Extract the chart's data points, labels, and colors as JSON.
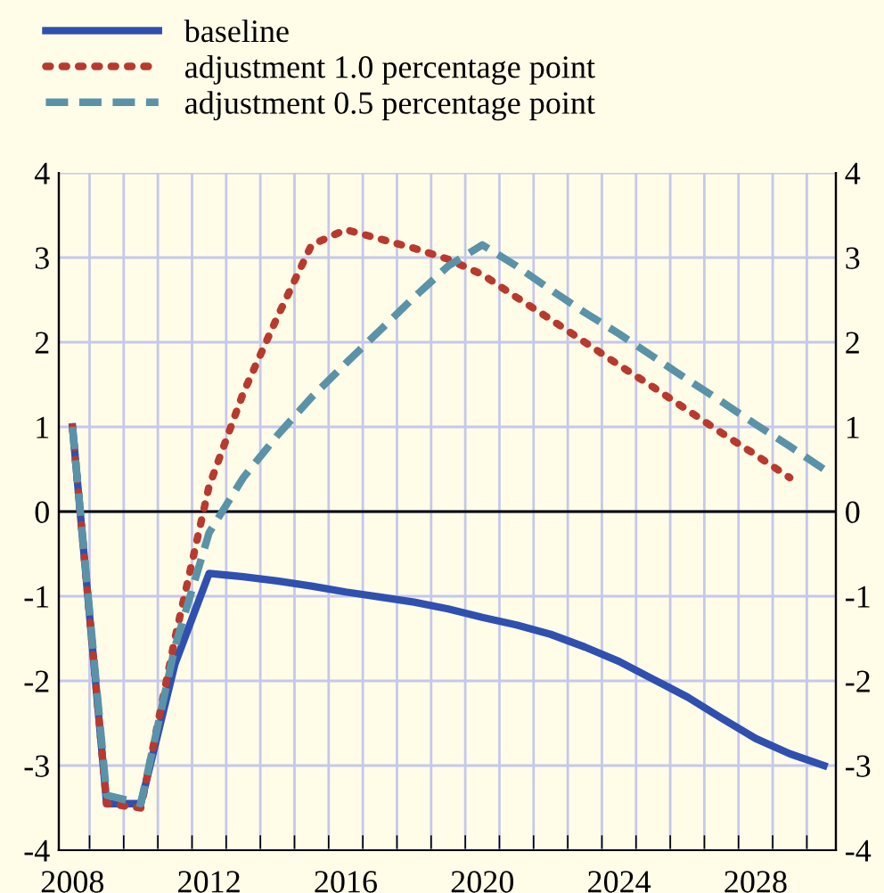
{
  "chart_data": {
    "type": "line",
    "x": [
      2008,
      2009,
      2010,
      2011,
      2012,
      2013,
      2014,
      2015,
      2016,
      2017,
      2018,
      2019,
      2020,
      2021,
      2022,
      2023,
      2024,
      2025,
      2026,
      2027,
      2028,
      2029,
      2030
    ],
    "series": [
      {
        "name": "baseline",
        "color": "#3050b0",
        "line_style": "solid",
        "values": [
          1.0,
          -3.45,
          -3.45,
          -1.8,
          -0.73,
          -0.77,
          -0.82,
          -0.88,
          -0.95,
          -1.01,
          -1.07,
          -1.15,
          -1.25,
          -1.34,
          -1.45,
          -1.6,
          -1.77,
          -1.98,
          -2.19,
          -2.44,
          -2.68,
          -2.86,
          -3.0
        ]
      },
      {
        "name": "adjustment 1.0 percentage point",
        "color": "#b83a2e",
        "line_style": "dotted",
        "values": [
          1.0,
          -3.45,
          -3.5,
          -1.5,
          0.3,
          1.4,
          2.3,
          3.15,
          3.33,
          3.22,
          3.11,
          2.98,
          2.8,
          2.53,
          2.27,
          2.0,
          1.73,
          1.47,
          1.2,
          0.93,
          0.67,
          0.4,
          null
        ]
      },
      {
        "name": "adjustment 0.5 percentage point",
        "color": "#5a93a8",
        "line_style": "dashed",
        "values": [
          1.0,
          -3.35,
          -3.45,
          -1.6,
          -0.25,
          0.4,
          0.9,
          1.35,
          1.75,
          2.14,
          2.53,
          2.9,
          3.15,
          2.9,
          2.62,
          2.35,
          2.1,
          1.83,
          1.56,
          1.3,
          1.03,
          0.77,
          0.5
        ]
      }
    ],
    "xlim": [
      2007.6,
      2030.35
    ],
    "xticks": [
      {
        "value": 2008,
        "label": "2008"
      },
      {
        "value": 2012,
        "label": "2012"
      },
      {
        "value": 2016,
        "label": "2016"
      },
      {
        "value": 2020,
        "label": "2020"
      },
      {
        "value": 2024,
        "label": "2024"
      },
      {
        "value": 2028,
        "label": "2028"
      },
      {
        "value": 2008.5,
        "label": null
      },
      {
        "value": 2009.5,
        "label": null
      },
      {
        "value": 2010.5,
        "label": null
      },
      {
        "value": 2011.5,
        "label": null
      },
      {
        "value": 2012.5,
        "label": null
      },
      {
        "value": 2013.5,
        "label": null
      },
      {
        "value": 2014.5,
        "label": null
      },
      {
        "value": 2015.5,
        "label": null
      },
      {
        "value": 2016.5,
        "label": null
      },
      {
        "value": 2017.5,
        "label": null
      },
      {
        "value": 2018.5,
        "label": null
      },
      {
        "value": 2019.5,
        "label": null
      },
      {
        "value": 2020.5,
        "label": null
      },
      {
        "value": 2021.5,
        "label": null
      },
      {
        "value": 2022.5,
        "label": null
      },
      {
        "value": 2023.5,
        "label": null
      },
      {
        "value": 2024.5,
        "label": null
      },
      {
        "value": 2025.5,
        "label": null
      },
      {
        "value": 2026.5,
        "label": null
      },
      {
        "value": 2027.5,
        "label": null
      },
      {
        "value": 2028.5,
        "label": null
      },
      {
        "value": 2029.5,
        "label": null
      }
    ],
    "ylim": [
      -4,
      4
    ],
    "yticks": [
      -4,
      -3,
      -2,
      -1,
      0,
      1,
      2,
      3,
      4
    ],
    "y2lim": [
      -4,
      4
    ],
    "y2ticks": [
      -4,
      -3,
      -2,
      -1,
      0,
      1,
      2,
      3,
      4
    ],
    "ref_lines": [
      {
        "axis": "y",
        "value": 0,
        "color": "#000000"
      }
    ],
    "grid": true,
    "legend": "top left",
    "marker": "none"
  }
}
